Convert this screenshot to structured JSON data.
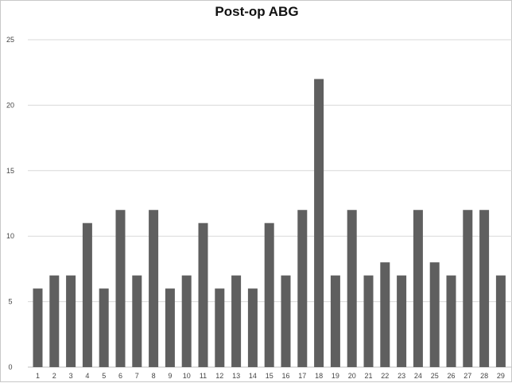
{
  "chart_data": {
    "type": "bar",
    "title": "Post-op ABG",
    "xlabel": "",
    "ylabel": "",
    "categories": [
      "1",
      "2",
      "3",
      "4",
      "5",
      "6",
      "7",
      "8",
      "9",
      "10",
      "11",
      "12",
      "13",
      "14",
      "15",
      "16",
      "17",
      "18",
      "19",
      "20",
      "21",
      "22",
      "23",
      "24",
      "25",
      "26",
      "27",
      "28",
      "29"
    ],
    "values": [
      6,
      7,
      7,
      11,
      6,
      12,
      7,
      12,
      6,
      7,
      11,
      6,
      7,
      6,
      11,
      7,
      12,
      22,
      7,
      12,
      7,
      8,
      7,
      12,
      8,
      7,
      12,
      12,
      7
    ],
    "ylim": [
      0,
      25
    ],
    "yticks": [
      "0",
      "5",
      "10",
      "15",
      "20",
      "25"
    ],
    "grid": true,
    "legend": "none",
    "colors": {
      "bar": "#5f5f5f",
      "grid": "#d9d9d9",
      "background": "#ffffff"
    }
  }
}
